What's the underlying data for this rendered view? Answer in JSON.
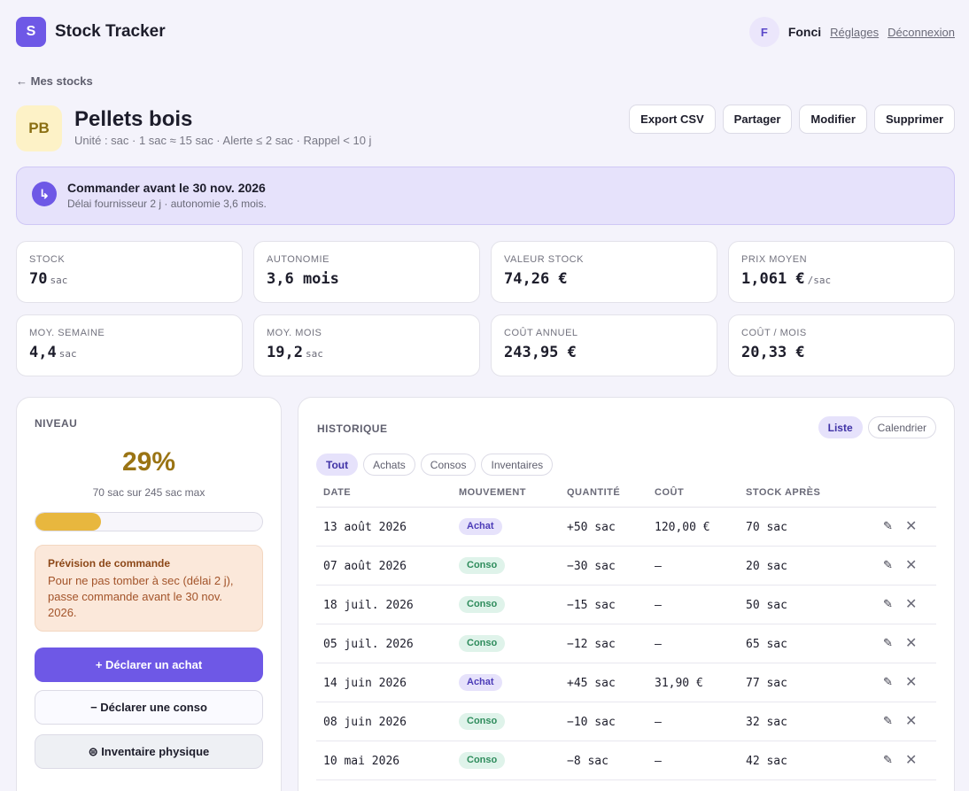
{
  "app": {
    "logo_letter": "S",
    "title": "Stock Tracker"
  },
  "user": {
    "initial": "F",
    "name": "Fonci",
    "settings_label": "Réglages",
    "logout_label": "Déconnexion"
  },
  "nav": {
    "back_label": "← Mes stocks"
  },
  "product": {
    "initials": "PB",
    "name": "Pellets bois",
    "meta": "Unité : sac · 1 sac ≈ 15 sac · Alerte ≤ 2 sac · Rappel < 10 j"
  },
  "actions": {
    "export": "Export CSV",
    "share": "Partager",
    "edit": "Modifier",
    "delete": "Supprimer"
  },
  "alert": {
    "icon_glyph": "↳",
    "title": "Commander avant le 30 nov. 2026",
    "subtitle": "Délai fournisseur 2 j · autonomie 3,6 mois."
  },
  "stats": [
    {
      "label": "Stock",
      "value": "70",
      "unit": "sac"
    },
    {
      "label": "Autonomie",
      "value": "3,6 mois",
      "unit": ""
    },
    {
      "label": "Valeur stock",
      "value": "74,26 €",
      "unit": ""
    },
    {
      "label": "Prix moyen",
      "value": "1,061 €",
      "unit": "/sac"
    },
    {
      "label": "Moy. semaine",
      "value": "4,4",
      "unit": "sac"
    },
    {
      "label": "Moy. mois",
      "value": "19,2",
      "unit": "sac"
    },
    {
      "label": "Coût annuel",
      "value": "243,95 €",
      "unit": ""
    },
    {
      "label": "Coût / mois",
      "value": "20,33 €",
      "unit": ""
    }
  ],
  "level": {
    "title": "NIVEAU",
    "percent_label": "29%",
    "fill_fraction": 0.29,
    "subtitle": "70 sac sur 245 sac max",
    "forecast_title": "Prévision de commande",
    "forecast_text": "Pour ne pas tomber à sec (délai 2 j), passe commande avant le 30 nov. 2026.",
    "buy_label": "+ Déclarer un achat",
    "use_label": "− Déclarer une conso",
    "inventory_label": "⊜ Inventaire physique"
  },
  "history": {
    "title": "HISTORIQUE",
    "views": {
      "list": "Liste",
      "calendar": "Calendrier"
    },
    "filters": [
      "Tout",
      "Achats",
      "Consos",
      "Inventaires"
    ],
    "columns": [
      "DATE",
      "MOUVEMENT",
      "QUANTITÉ",
      "COÛT",
      "STOCK APRÈS"
    ],
    "rows": [
      {
        "date": "13 août 2026",
        "type": "Achat",
        "kind": "achat",
        "qty": "+50 sac",
        "cost": "120,00 €",
        "after": "70 sac"
      },
      {
        "date": "07 août 2026",
        "type": "Conso",
        "kind": "conso",
        "qty": "−30 sac",
        "cost": "—",
        "after": "20 sac"
      },
      {
        "date": "18 juil. 2026",
        "type": "Conso",
        "kind": "conso",
        "qty": "−15 sac",
        "cost": "—",
        "after": "50 sac"
      },
      {
        "date": "05 juil. 2026",
        "type": "Conso",
        "kind": "conso",
        "qty": "−12 sac",
        "cost": "—",
        "after": "65 sac"
      },
      {
        "date": "14 juin 2026",
        "type": "Achat",
        "kind": "achat",
        "qty": "+45 sac",
        "cost": "31,90 €",
        "after": "77 sac"
      },
      {
        "date": "08 juin 2026",
        "type": "Conso",
        "kind": "conso",
        "qty": "−10 sac",
        "cost": "—",
        "after": "32 sac"
      },
      {
        "date": "10 mai 2026",
        "type": "Conso",
        "kind": "conso",
        "qty": "−8 sac",
        "cost": "—",
        "after": "42 sac"
      }
    ],
    "edit_icon": "✎",
    "delete_icon": "✕"
  },
  "colors": {
    "accent": "#6e58e6",
    "warning": "#e8b73e",
    "achat_badge": "#e6e2fb",
    "conso_badge": "#dff3ea"
  }
}
